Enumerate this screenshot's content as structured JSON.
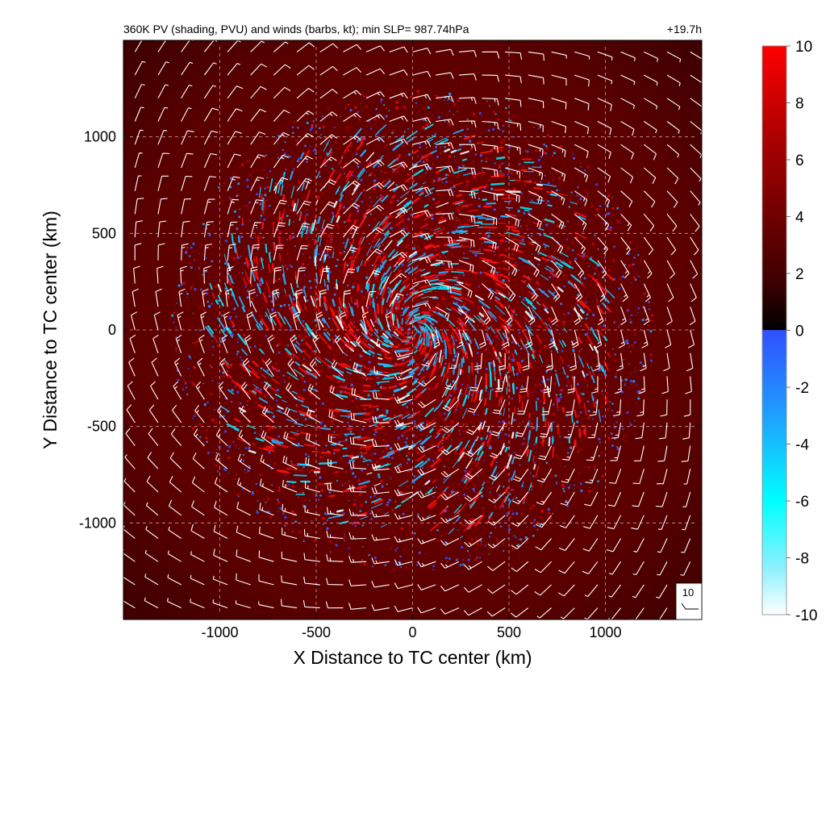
{
  "chart_data": {
    "type": "heatmap",
    "title": "360K PV (shading, PVU) and winds (barbs, kt); min SLP= 987.74hPa",
    "time_label": "+19.7h",
    "xlabel": "X Distance to TC center (km)",
    "ylabel": "Y Distance to TC center (km)",
    "xlim": [
      -1500,
      1500
    ],
    "ylim": [
      -1500,
      1500
    ],
    "xticks": [
      -1000,
      -500,
      0,
      500,
      1000
    ],
    "yticks": [
      -1000,
      -500,
      0,
      500,
      1000
    ],
    "xtick_labels": [
      "-1000",
      "-500",
      "0",
      "500",
      "1000"
    ],
    "ytick_labels": [
      "-1000",
      "-500",
      "0",
      "500",
      "1000"
    ],
    "grid": true,
    "colorbar": {
      "min": -10,
      "max": 10,
      "ticks": [
        10,
        8,
        6,
        4,
        2,
        0,
        -2,
        -4,
        -6,
        -8,
        -10
      ],
      "tick_labels": [
        "10",
        "8",
        "6",
        "4",
        "2",
        "0",
        "-2",
        "-4",
        "-6",
        "-8",
        "-10"
      ],
      "colors_positive": [
        "#000000",
        "#3a0000",
        "#700000",
        "#b00000",
        "#ff0000"
      ],
      "colors_negative": [
        "#3050ff",
        "#1fa0ff",
        "#00ffff",
        "#90f0ff",
        "#ffffff"
      ]
    },
    "background_color": "#5a0000",
    "wind_barb_color": "#ffffff",
    "reference_barb_label": "10",
    "reference_barb_kt": 10,
    "wind_field": {
      "barb_spacing_km": 120,
      "min_wind_kt": 8,
      "max_wind_kt": 22,
      "circulation": "cyclonic"
    }
  }
}
